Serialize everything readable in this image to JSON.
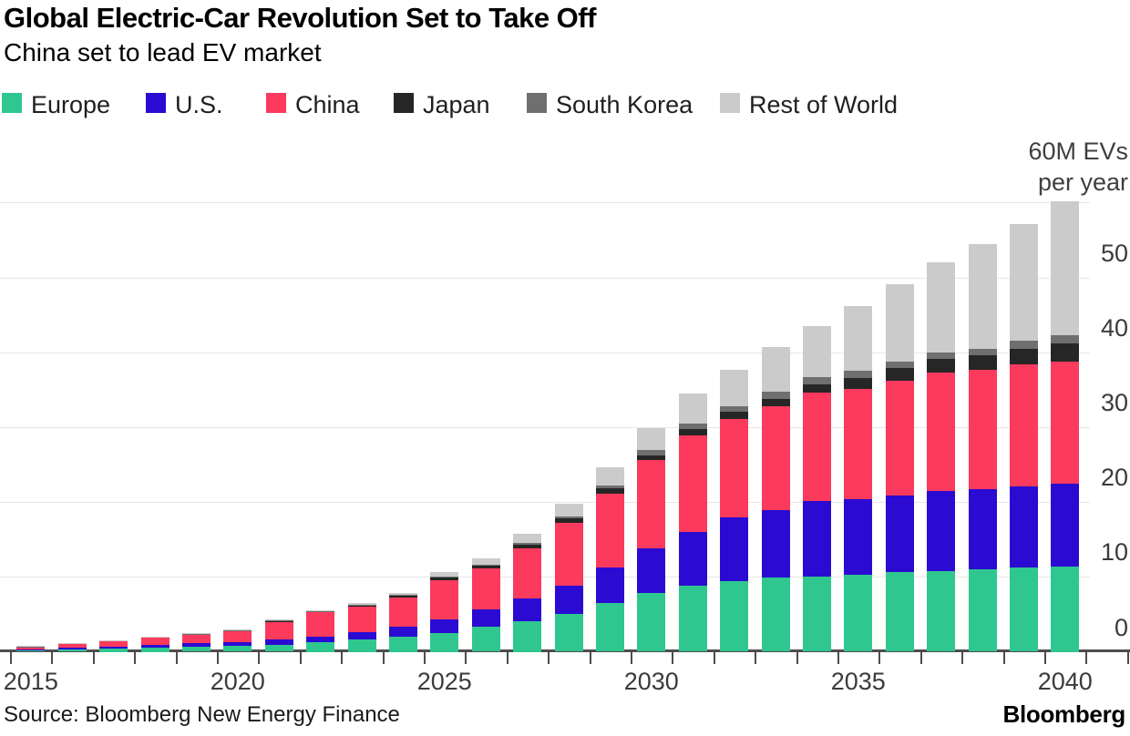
{
  "header": {
    "title": "Global Electric-Car Revolution Set to Take Off",
    "subtitle": "China set to lead EV market"
  },
  "legend": {
    "items": [
      {
        "label": "Europe",
        "color": "#2fc78f"
      },
      {
        "label": "U.S.",
        "color": "#2b0bd2"
      },
      {
        "label": "China",
        "color": "#fb3a5d"
      },
      {
        "label": "Japan",
        "color": "#262626"
      },
      {
        "label": "South Korea",
        "color": "#6f6f6f"
      },
      {
        "label": "Rest of World",
        "color": "#cbcbcb"
      }
    ]
  },
  "y_axis": {
    "unit_line1": "60M EVs",
    "unit_line2": "per year",
    "ticks": [
      0,
      10,
      20,
      30,
      40,
      50
    ]
  },
  "x_axis": {
    "labeled_years": [
      2015,
      2020,
      2025,
      2030,
      2035,
      2040
    ]
  },
  "footer": {
    "source": "Source: Bloomberg New Energy Finance",
    "brand": "Bloomberg"
  },
  "chart_data": {
    "type": "bar",
    "stacked": true,
    "title": "Global Electric-Car Revolution Set to Take Off",
    "subtitle": "China set to lead EV market",
    "xlabel": "",
    "ylabel": "M EVs per year",
    "ylim": [
      0,
      60
    ],
    "grid": true,
    "legend_position": "top",
    "categories": [
      2015,
      2016,
      2017,
      2018,
      2019,
      2020,
      2021,
      2022,
      2023,
      2024,
      2025,
      2026,
      2027,
      2028,
      2029,
      2030,
      2031,
      2032,
      2033,
      2034,
      2035,
      2036,
      2037,
      2038,
      2039,
      2040
    ],
    "series": [
      {
        "name": "Europe",
        "color": "#2fc78f",
        "values": [
          0.15,
          0.3,
          0.4,
          0.55,
          0.7,
          0.75,
          0.95,
          1.25,
          1.65,
          2.0,
          2.45,
          3.3,
          4.1,
          5.0,
          6.45,
          7.8,
          8.8,
          9.4,
          9.9,
          10.0,
          10.3,
          10.6,
          10.8,
          11.0,
          11.2,
          11.4
        ]
      },
      {
        "name": "U.S.",
        "color": "#2b0bd2",
        "values": [
          0.15,
          0.2,
          0.3,
          0.35,
          0.4,
          0.55,
          0.7,
          0.8,
          1.0,
          1.35,
          1.85,
          2.35,
          3.0,
          3.85,
          4.75,
          6.0,
          7.2,
          8.5,
          9.0,
          10.1,
          10.1,
          10.3,
          10.7,
          10.75,
          10.9,
          11.0
        ]
      },
      {
        "name": "China",
        "color": "#fb3a5d",
        "values": [
          0.35,
          0.55,
          0.75,
          1.0,
          1.2,
          1.4,
          2.35,
          3.2,
          3.35,
          3.9,
          5.3,
          5.5,
          6.7,
          8.4,
          9.9,
          11.75,
          12.9,
          13.2,
          13.9,
          14.5,
          14.7,
          15.3,
          15.8,
          15.95,
          16.25,
          16.4
        ]
      },
      {
        "name": "Japan",
        "color": "#262626",
        "values": [
          0.05,
          0.05,
          0.06,
          0.08,
          0.08,
          0.12,
          0.15,
          0.12,
          0.2,
          0.33,
          0.36,
          0.33,
          0.5,
          0.55,
          0.7,
          0.7,
          0.8,
          0.9,
          1.0,
          1.1,
          1.5,
          1.7,
          1.8,
          1.95,
          2.15,
          2.4
        ]
      },
      {
        "name": "South Korea",
        "color": "#6f6f6f",
        "values": [
          0.02,
          0.02,
          0.02,
          0.03,
          0.03,
          0.05,
          0.05,
          0.05,
          0.07,
          0.08,
          0.1,
          0.1,
          0.2,
          0.3,
          0.35,
          0.65,
          0.8,
          0.8,
          0.9,
          1.0,
          0.9,
          0.9,
          0.9,
          0.85,
          1.0,
          1.1
        ]
      },
      {
        "name": "Rest of World",
        "color": "#cbcbcb",
        "values": [
          0.08,
          0.05,
          0.05,
          0.06,
          0.06,
          0.13,
          0.13,
          0.12,
          0.24,
          0.19,
          0.64,
          0.85,
          1.25,
          1.7,
          2.5,
          3.0,
          4.0,
          4.9,
          6.0,
          6.8,
          8.7,
          10.3,
          12.0,
          13.9,
          15.6,
          17.8
        ]
      }
    ]
  }
}
